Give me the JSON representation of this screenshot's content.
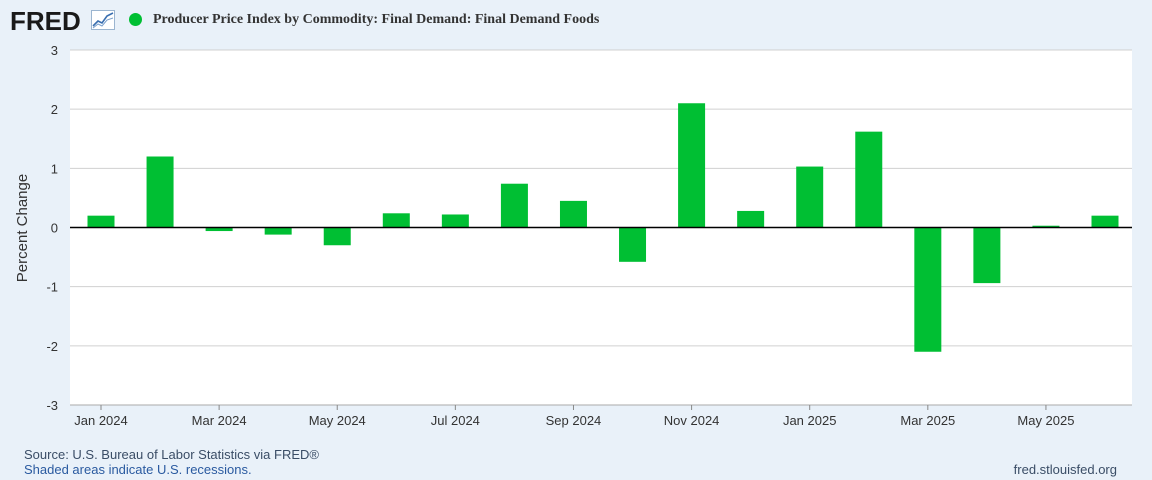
{
  "header": {
    "logo_text": "FRED",
    "series_title": "Producer Price Index by Commodity: Final Demand: Final Demand Foods"
  },
  "footer": {
    "source": "Source: U.S. Bureau of Labor Statistics via FRED®",
    "recession_note": "Shaded areas indicate U.S. recessions.",
    "url": "fred.stlouisfed.org"
  },
  "colors": {
    "bar": "#00bf33",
    "legend": "#00bf33",
    "grid": "#d0d0d0",
    "zero_line": "#000000",
    "plot_bg": "#ffffff"
  },
  "chart_data": {
    "type": "bar",
    "title": "Producer Price Index by Commodity: Final Demand: Final Demand Foods",
    "xlabel": "",
    "ylabel": "Percent Change",
    "ylim": [
      -3,
      3
    ],
    "yticks": [
      3,
      2,
      1,
      0,
      -1,
      -2,
      -3
    ],
    "categories": [
      "Jan 2024",
      "Feb 2024",
      "Mar 2024",
      "Apr 2024",
      "May 2024",
      "Jun 2024",
      "Jul 2024",
      "Aug 2024",
      "Sep 2024",
      "Oct 2024",
      "Nov 2024",
      "Dec 2024",
      "Jan 2025",
      "Feb 2025",
      "Mar 2025",
      "Apr 2025",
      "May 2025",
      "Jun 2025"
    ],
    "values": [
      0.2,
      1.2,
      -0.06,
      -0.12,
      -0.3,
      0.24,
      0.22,
      0.74,
      0.45,
      -0.58,
      2.1,
      0.28,
      1.03,
      1.62,
      -2.1,
      -0.94,
      0.03,
      0.2
    ],
    "xtick_labels": [
      "Jan 2024",
      "Mar 2024",
      "May 2024",
      "Jul 2024",
      "Sep 2024",
      "Nov 2024",
      "Jan 2025",
      "Mar 2025",
      "May 2025"
    ],
    "grid": true,
    "legend": "top-left"
  }
}
